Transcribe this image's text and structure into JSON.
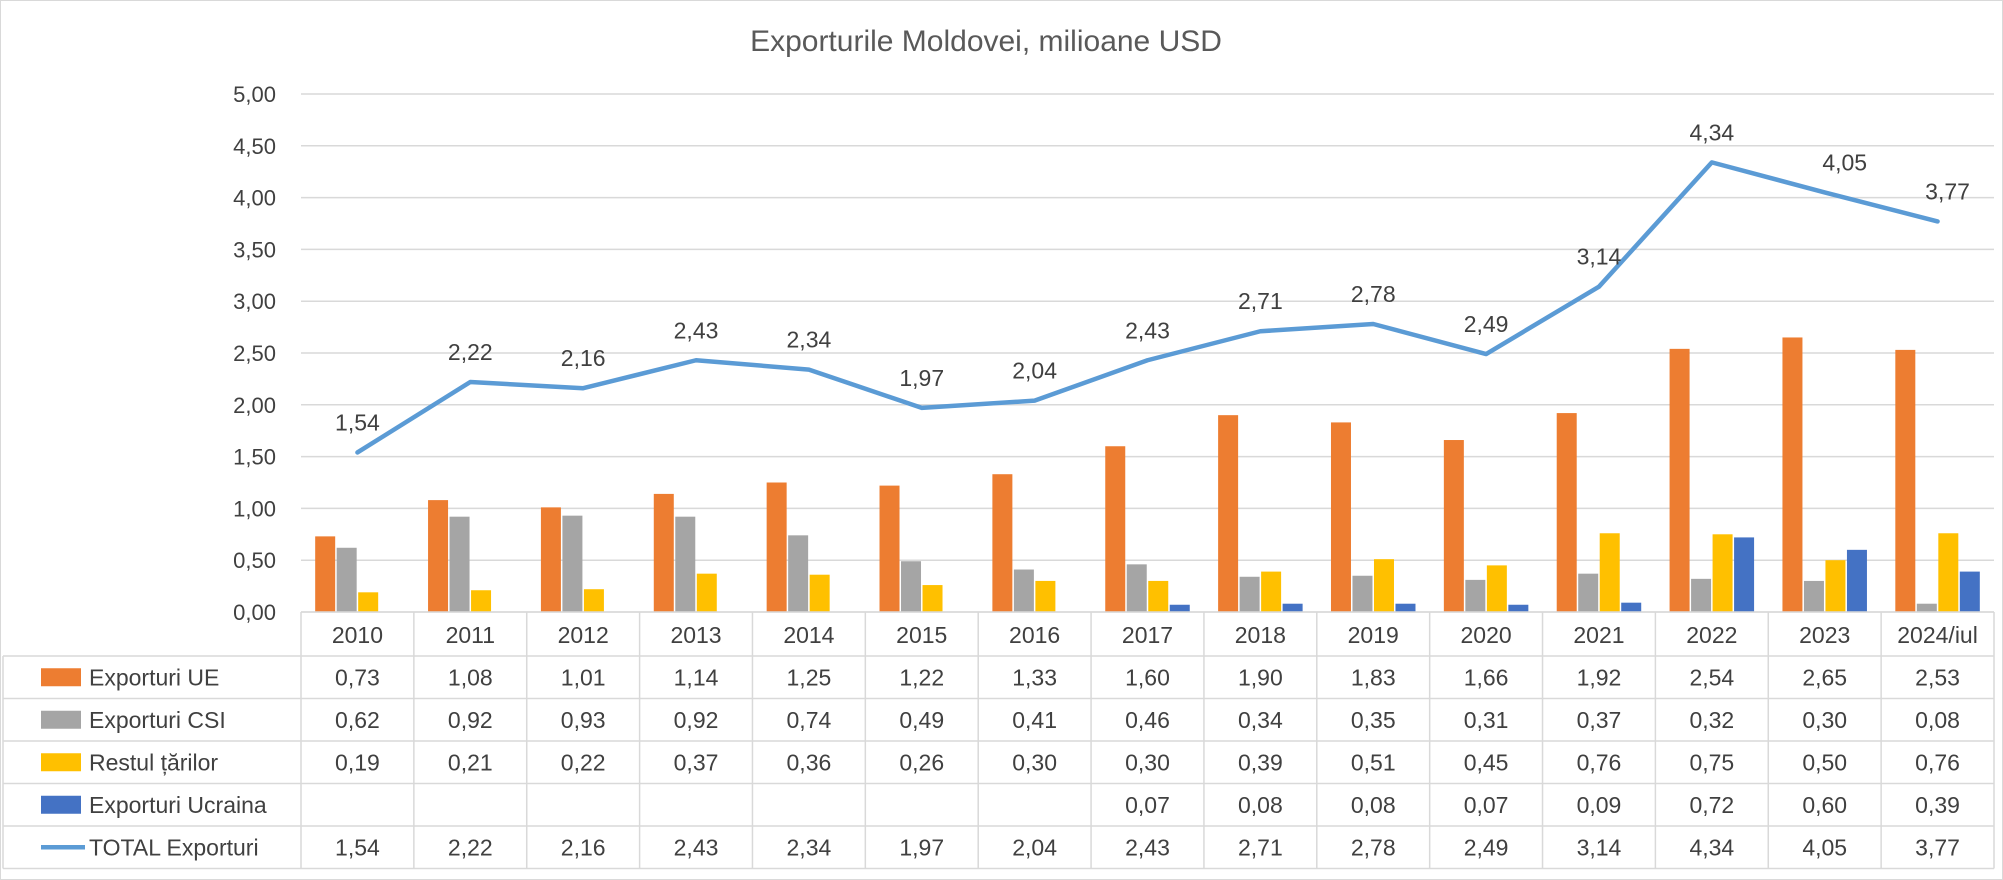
{
  "chart_data": {
    "type": "bar",
    "title": "Exporturile Moldovei, milioane USD",
    "categories": [
      "2010",
      "2011",
      "2012",
      "2013",
      "2014",
      "2015",
      "2016",
      "2017",
      "2018",
      "2019",
      "2020",
      "2021",
      "2022",
      "2023",
      "2024/iul"
    ],
    "yticks": [
      "0,00",
      "0,50",
      "1,00",
      "1,50",
      "2,00",
      "2,50",
      "3,00",
      "3,50",
      "4,00",
      "4,50",
      "5,00"
    ],
    "ylim": [
      0,
      5
    ],
    "grid": true,
    "legend": "data-table",
    "series": [
      {
        "name": "Exporturi UE",
        "kind": "bar",
        "color": "#ED7D31",
        "values": [
          0.73,
          1.08,
          1.01,
          1.14,
          1.25,
          1.22,
          1.33,
          1.6,
          1.9,
          1.83,
          1.66,
          1.92,
          2.54,
          2.65,
          2.53
        ],
        "labels": [
          "0,73",
          "1,08",
          "1,01",
          "1,14",
          "1,25",
          "1,22",
          "1,33",
          "1,60",
          "1,90",
          "1,83",
          "1,66",
          "1,92",
          "2,54",
          "2,65",
          "2,53"
        ]
      },
      {
        "name": "Exporturi CSI",
        "kind": "bar",
        "color": "#A5A5A5",
        "values": [
          0.62,
          0.92,
          0.93,
          0.92,
          0.74,
          0.49,
          0.41,
          0.46,
          0.34,
          0.35,
          0.31,
          0.37,
          0.32,
          0.3,
          0.08
        ],
        "labels": [
          "0,62",
          "0,92",
          "0,93",
          "0,92",
          "0,74",
          "0,49",
          "0,41",
          "0,46",
          "0,34",
          "0,35",
          "0,31",
          "0,37",
          "0,32",
          "0,30",
          "0,08"
        ]
      },
      {
        "name": "Restul țărilor",
        "kind": "bar",
        "color": "#FFC000",
        "values": [
          0.19,
          0.21,
          0.22,
          0.37,
          0.36,
          0.26,
          0.3,
          0.3,
          0.39,
          0.51,
          0.45,
          0.76,
          0.75,
          0.5,
          0.76
        ],
        "labels": [
          "0,19",
          "0,21",
          "0,22",
          "0,37",
          "0,36",
          "0,26",
          "0,30",
          "0,30",
          "0,39",
          "0,51",
          "0,45",
          "0,76",
          "0,75",
          "0,50",
          "0,76"
        ]
      },
      {
        "name": "Exporturi Ucraina",
        "kind": "bar",
        "color": "#4472C4",
        "values": [
          null,
          null,
          null,
          null,
          null,
          null,
          null,
          0.07,
          0.08,
          0.08,
          0.07,
          0.09,
          0.72,
          0.6,
          0.39
        ],
        "labels": [
          "",
          "",
          "",
          "",
          "",
          "",
          "",
          "0,07",
          "0,08",
          "0,08",
          "0,07",
          "0,09",
          "0,72",
          "0,60",
          "0,39"
        ]
      },
      {
        "name": "TOTAL Exporturi",
        "kind": "line",
        "color": "#5B9BD5",
        "values": [
          1.54,
          2.22,
          2.16,
          2.43,
          2.34,
          1.97,
          2.04,
          2.43,
          2.71,
          2.78,
          2.49,
          3.14,
          4.34,
          4.05,
          3.77
        ],
        "labels": [
          "1,54",
          "2,22",
          "2,16",
          "2,43",
          "2,34",
          "1,97",
          "2,04",
          "2,43",
          "2,71",
          "2,78",
          "2,49",
          "3,14",
          "4,34",
          "4,05",
          "3,77"
        ]
      }
    ]
  }
}
